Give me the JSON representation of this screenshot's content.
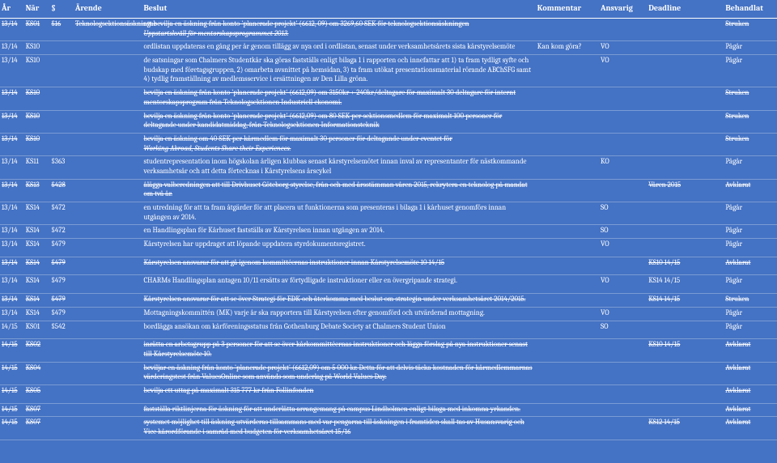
{
  "header": {
    "ar": "År",
    "nar": "När",
    "par": "§",
    "arende": "Ärende",
    "beslut": "Beslut",
    "kommentar": "Kommentar",
    "ansvarig": "Ansvarig",
    "deadline": "Deadline",
    "behandlat": "Behandlat"
  },
  "rows": [
    {
      "ar": "13/14",
      "nar": "KS01",
      "par": "§16",
      "arende": "Teknologsektionsäskningar",
      "beslut": "att bevilja en äskning från konto 'planerade projekt' (6612, 09) om 3269,60 SEK för teknologsektionsäskningen",
      "beslut2": "Uppstartskväll för mentorskapsprogrammet 2013.",
      "beslut2_italic": true,
      "kommentar": "",
      "ansvarig": "",
      "deadline": "",
      "behandlat": "Struken",
      "strike": true
    },
    {
      "ar": "13/14",
      "nar": "KS10",
      "par": "",
      "arende": "",
      "beslut": "ordlistan uppdateras en gång per år genom tillägg av nya ord i ordlistan, senast under verksamhetsårets sista kårstyrelsemöte",
      "kommentar": "Kan kom göra?",
      "ansvarig": "VO",
      "deadline": "",
      "behandlat": "Pågår"
    },
    {
      "ar": "13/14",
      "nar": "KS10",
      "par": "",
      "arende": "",
      "beslut": "de satsningar som Chalmers Studentkår ska göras fastställs enligt bilaga 1 i rapporten och innefattar att 1) ta fram tydligt syfte och budskap med företagsgruppen, 2) omarbeta avsnittet på hemsidan, 3) ta fram utökat presentationsmaterial rörande ABChSFG samt 4) tydlig framställning av medlemsservice i ersättningen av Den Lilla gröna.",
      "kommentar": "",
      "ansvarig": "VO",
      "deadline": "",
      "behandlat": "Pågår"
    },
    {
      "ar": "13/14",
      "nar": "KS10",
      "par": "",
      "arende": "",
      "beslut": "bevilja en äskning från konto 'planerade projekt' (6612,09) om 3150kr + 240kr/deltagare för maximalt 30 deltagare för internt mentorskapsprogram från Teknologsektionen Industriell ekonomi.",
      "kommentar": "",
      "ansvarig": "",
      "deadline": "",
      "behandlat": "Struken",
      "strike": true
    },
    {
      "ar": "13/14",
      "nar": "KS10",
      "par": "",
      "arende": "",
      "beslut": "bevilja en äskning från konto 'planerade projekt' (6612,09) om 80 SEK per sektionsmedlem för maximalt 100 personer för deltagande under kandidatmiddag, från Teknologsektionen Informationsteknik",
      "kommentar": "",
      "ansvarig": "",
      "deadline": "",
      "behandlat": "Struken",
      "strike": true
    },
    {
      "ar": "13/14",
      "nar": "KS10",
      "par": "",
      "arende": "",
      "beslut": "bevilja en äskning om 40 SEK per kårmedlem för maximalt 30 personer för deltagande under eventet för",
      "beslut2": "Working Abroad, Students Share their Experiences.",
      "beslut2_italic": true,
      "kommentar": "",
      "ansvarig": "",
      "deadline": "",
      "behandlat": "Struken",
      "strike": true
    },
    {
      "ar": "13/14",
      "nar": "KS11",
      "par": "§363",
      "arende": "",
      "beslut": "studentrepresentation inom högskolan årligen klubbas senast kårstyrelsemötet innan inval av representanter för nästkommande verksamhetsår och att detta förtecknas i Kårstyrelsens årscykel",
      "kommentar": "",
      "ansvarig": "KO",
      "deadline": "",
      "behandlat": "Pågår"
    },
    {
      "ar": "13/14",
      "nar": "KS13",
      "par": "§428",
      "arende": "",
      "beslut": "ålägga valberedningen att till Drivhuset Göteborg styrelse, från och med årsstämman våren 2015, rekrytera en teknolog på mandat om två år.",
      "kommentar": "",
      "ansvarig": "",
      "deadline": "Våren 2015",
      "behandlat": "Avklarat",
      "strike": true
    },
    {
      "ar": "13/14",
      "nar": "KS14",
      "par": "§472",
      "arende": "",
      "beslut": "en utredning för att ta fram åtgärder för att placera ut funktionerna som presenteras i bilaga 1 i kårhuset genomförs innan utgången av 2014.",
      "kommentar": "",
      "ansvarig": "SO",
      "deadline": "",
      "behandlat": "Pågår"
    },
    {
      "ar": "13/14",
      "nar": "KS14",
      "par": "§472",
      "arende": "",
      "beslut": "en Handlingsplan för Kårhuset fastställs av Kårstyrelsen innan utgången av 2014.",
      "kommentar": "",
      "ansvarig": "SO",
      "deadline": "",
      "behandlat": "Pågår"
    },
    {
      "ar": "13/14",
      "nar": "KS14",
      "par": "§479",
      "arende": "",
      "beslut": "Kårstyrelsen har uppdraget att löpande uppdatera styrdokumentsregistret.",
      "kommentar": "",
      "ansvarig": "VO",
      "deadline": "",
      "behandlat": "Pågår",
      "pad": true
    },
    {
      "ar": "13/14",
      "nar": "KS14",
      "par": "§479",
      "arende": "",
      "beslut": "Kårstyrelsen ansvarar för att gå igenom kommittéernas instruktioner innan Kårstyrelsemöte 10 14/15",
      "kommentar": "",
      "ansvarig": "",
      "deadline": "KS10 14/15",
      "behandlat": "Avklarat",
      "strike": true,
      "pad": true
    },
    {
      "ar": "13/14",
      "nar": "KS14",
      "par": "§479",
      "arende": "",
      "beslut": "CHARMs Handlingsplan antagen 10/11 ersätts av förtydligade instruktioner eller en övergripande strategi.",
      "kommentar": "",
      "ansvarig": "VO",
      "deadline": "KS14 14/15",
      "behandlat": "Pågår",
      "pad": true
    },
    {
      "ar": "13/14",
      "nar": "KS14",
      "par": "§479",
      "arende": "",
      "beslut": "Kårstyrelsen ansvarar för att se över Strategi för EDK och återkomma med beslut om strategin under verksamhetsåret 2014/2015.",
      "kommentar": "",
      "ansvarig": "",
      "deadline": "KS14 14/15",
      "behandlat": "Struken",
      "strike": true
    },
    {
      "ar": "13/14",
      "nar": "KS14",
      "par": "§479",
      "arende": "",
      "beslut": "Mottagningskommittén (MK) varje år ska rapportera till Kårstyrelsen efter genomförd och utvärderad mottagning.",
      "kommentar": "",
      "ansvarig": "VO",
      "deadline": "",
      "behandlat": "Pågår"
    },
    {
      "ar": "14/15",
      "nar": "KS01",
      "par": "§542",
      "arende": "",
      "beslut": "bordlägga ansökan om kårföreningsstatus från Gothenburg Debate Society at Chalmers Student Union",
      "kommentar": "",
      "ansvarig": "SO",
      "deadline": "",
      "behandlat": "Pågår",
      "pad": true
    },
    {
      "ar": "14/15",
      "nar": "KS02",
      "par": "",
      "arende": "",
      "beslut": "inrätta en arbetsgrupp på 3 personer för att se över kårkommittéernas instruktioner och lägga förslag på nya instruktioner senast till Kårstyrelsemöte 10.",
      "kommentar": "",
      "ansvarig": "",
      "deadline": "KS10 14/15",
      "behandlat": "Avklarat",
      "strike": true
    },
    {
      "ar": "14/15",
      "nar": "KS04",
      "par": "",
      "arende": "",
      "beslut": "beviljar en äskning från konto 'planerade projekt' (6612,09) om 5 000 kr. Detta för att delvis täcka kostnaden för kårmedlemmarnas värderingstest från ValuesOnline som används som underlag på World Values Day.",
      "kommentar": "",
      "ansvarig": "",
      "deadline": "",
      "behandlat": "Avklarat",
      "strike": true
    },
    {
      "ar": "14/15",
      "nar": "KS05",
      "par": "",
      "arende": "",
      "beslut": "bevilja ett uttag på maximalt 315 777 kr från Follinfonden",
      "kommentar": "",
      "ansvarig": "",
      "deadline": "",
      "behandlat": "Avklarat",
      "strike": true,
      "pad": true
    },
    {
      "ar": "14/15",
      "nar": "KS07",
      "par": "",
      "arende": "",
      "beslut": "fastställa riktlinjerna för äskning för att underlätta arrangemang på campus Lindholmen enligt bilaga med inkomna yrkanden.",
      "kommentar": "",
      "ansvarig": "",
      "deadline": "",
      "behandlat": "Avklarat",
      "strike": true
    },
    {
      "ar": "14/15",
      "nar": "KS07",
      "par": "",
      "arende": "",
      "beslut": "systemet möjlighet till äskning utvärderas tillsammans med var pengarna till äskningen i framtiden skall tas av Husansvarig och Vice kårordförande i samråd med budgeten för verksamhetsåret 15/16",
      "kommentar": "",
      "ansvarig": "",
      "deadline": "KS12 14/15",
      "behandlat": "Avklarat",
      "strike": true
    }
  ]
}
